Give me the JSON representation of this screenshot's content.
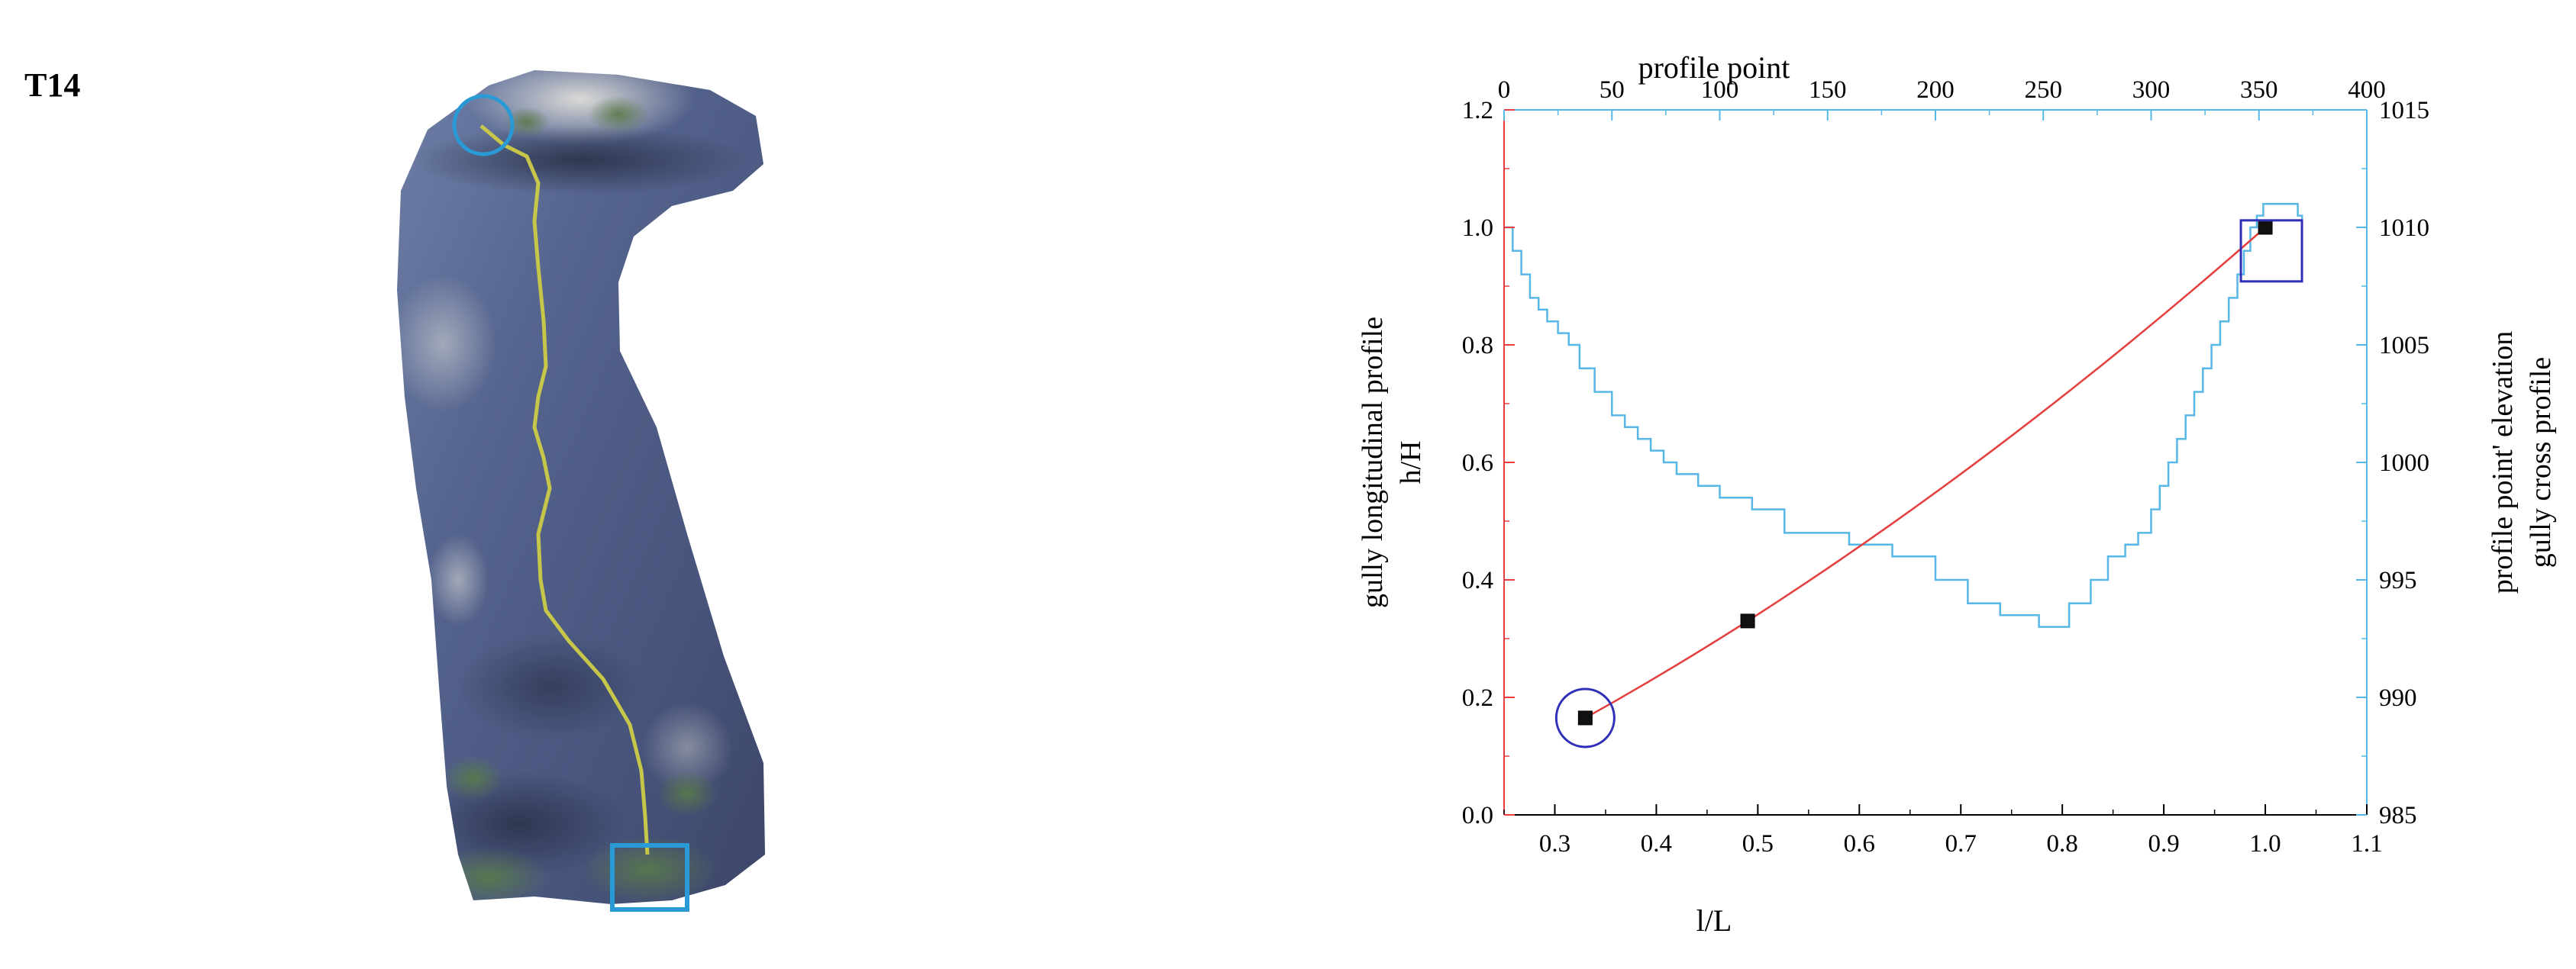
{
  "panel_label": "T14",
  "colors": {
    "longitudinal": "#e53e3e",
    "cross": "#57b7e6",
    "marker": "#111111",
    "circle_box": "#2f2fb8",
    "aerial_overlay": "#2a9ad6",
    "thalweg": "#c6c64a"
  },
  "chart_data": {
    "type": "line",
    "xlabel": "l/L",
    "top_xlabel": "profile point",
    "ylabel_left": [
      "gully longitudinal profile",
      "h/H"
    ],
    "ylabel_right": [
      "profile point' elevation",
      "gully cross profile"
    ],
    "xlim": [
      0.25,
      1.1
    ],
    "ylim_left": [
      0.0,
      1.2
    ],
    "top_xlim": [
      0,
      400
    ],
    "ylim_right": [
      985,
      1015
    ],
    "x_ticks": [
      "0.3",
      "0.4",
      "0.5",
      "0.6",
      "0.7",
      "0.8",
      "0.9",
      "1.0",
      "1.1"
    ],
    "y_left_ticks": [
      "0.0",
      "0.2",
      "0.4",
      "0.6",
      "0.8",
      "1.0",
      "1.2"
    ],
    "top_ticks": [
      "0",
      "50",
      "100",
      "150",
      "200",
      "250",
      "300",
      "350",
      "400"
    ],
    "y_right_ticks": [
      "985",
      "990",
      "995",
      "1000",
      "1005",
      "1010",
      "1015"
    ],
    "grid": false,
    "series": [
      {
        "role": "longitudinal",
        "x": [
          0.33,
          0.49,
          1.0
        ],
        "y": [
          0.165,
          0.33,
          1.0
        ]
      },
      {
        "role": "cross",
        "profile_point": [
          0,
          4,
          8,
          12,
          16,
          20,
          25,
          30,
          35,
          42,
          50,
          56,
          62,
          68,
          74,
          80,
          90,
          100,
          115,
          130,
          150,
          160,
          180,
          200,
          215,
          230,
          248,
          262,
          272,
          280,
          288,
          294,
          300,
          304,
          308,
          312,
          316,
          320,
          324,
          328,
          332,
          336,
          340,
          343,
          346,
          349,
          352,
          356,
          362,
          368,
          370
        ],
        "elevation": [
          1010,
          1009,
          1008,
          1007,
          1006.5,
          1006,
          1005.5,
          1005,
          1004,
          1003,
          1002,
          1001.5,
          1001,
          1000.5,
          1000,
          999.5,
          999,
          998.5,
          998,
          997,
          997,
          996.5,
          996,
          995,
          994,
          993.5,
          993,
          994,
          995,
          996,
          996.5,
          997,
          998,
          999,
          1000,
          1001,
          1002,
          1003,
          1004,
          1005,
          1006,
          1007,
          1008,
          1009,
          1010,
          1010.5,
          1011,
          1011,
          1011,
          1010.5,
          1010
        ]
      }
    ],
    "markers": [
      {
        "x": 0.33,
        "y": 0.165
      },
      {
        "x": 0.49,
        "y": 0.33
      },
      {
        "x": 1.0,
        "y": 1.0
      }
    ],
    "annotations": [
      {
        "shape": "circle",
        "x": 0.33,
        "y": 0.165
      },
      {
        "shape": "square",
        "x": 1.0,
        "y": 0.96
      }
    ]
  }
}
